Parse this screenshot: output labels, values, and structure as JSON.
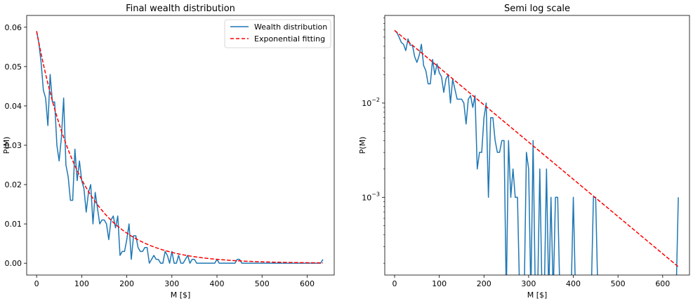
{
  "chart_data": [
    {
      "type": "line",
      "title": "Final wealth distribution",
      "xlabel": "M [$]",
      "ylabel": "P(M)",
      "xlim": [
        -22,
        660
      ],
      "ylim": [
        -0.003,
        0.063
      ],
      "yscale": "linear",
      "xticks": [
        0,
        100,
        200,
        300,
        400,
        500,
        600
      ],
      "xtick_labels": [
        "0",
        "100",
        "200",
        "300",
        "400",
        "500",
        "600"
      ],
      "yticks": [
        0.0,
        0.01,
        0.02,
        0.03,
        0.04,
        0.05,
        0.06
      ],
      "ytick_labels": [
        "0.00",
        "0.01",
        "0.02",
        "0.03",
        "0.04",
        "0.05",
        "0.06"
      ],
      "legend": {
        "position": "upper right",
        "entries": [
          "Wealth distribution",
          "Exponential fitting"
        ]
      },
      "series": [
        {
          "name": "Wealth distribution",
          "style": "solid",
          "color": "#1f77b4",
          "x": [
            0,
            5,
            10,
            15,
            20,
            25,
            30,
            35,
            40,
            45,
            50,
            55,
            60,
            65,
            70,
            75,
            80,
            85,
            90,
            95,
            100,
            105,
            110,
            115,
            120,
            125,
            130,
            135,
            140,
            145,
            150,
            155,
            160,
            165,
            170,
            175,
            180,
            185,
            190,
            195,
            200,
            205,
            210,
            215,
            220,
            225,
            230,
            235,
            240,
            245,
            250,
            255,
            260,
            265,
            270,
            275,
            280,
            285,
            290,
            295,
            300,
            305,
            310,
            315,
            320,
            325,
            330,
            335,
            340,
            345,
            350,
            355,
            360,
            365,
            370,
            375,
            380,
            385,
            390,
            395,
            400,
            405,
            410,
            415,
            420,
            425,
            430,
            435,
            440,
            445,
            450,
            455,
            460,
            465,
            470,
            475,
            480,
            485,
            490,
            495,
            500,
            505,
            510,
            515,
            520,
            525,
            530,
            535,
            540,
            545,
            550,
            555,
            560,
            565,
            570,
            575,
            580,
            585,
            590,
            595,
            600,
            605,
            610,
            615,
            620,
            625,
            630,
            635
          ],
          "values": [
            0.059,
            0.056,
            0.051,
            0.044,
            0.042,
            0.035,
            0.048,
            0.041,
            0.041,
            0.03,
            0.026,
            0.032,
            0.042,
            0.025,
            0.022,
            0.016,
            0.016,
            0.029,
            0.021,
            0.026,
            0.021,
            0.019,
            0.013,
            0.018,
            0.02,
            0.01,
            0.018,
            0.014,
            0.01,
            0.011,
            0.011,
            0.01,
            0.006,
            0.011,
            0.012,
            0.009,
            0.012,
            0.002,
            0.003,
            0.003,
            0.006,
            0.01,
            0.001,
            0.007,
            0.007,
            0.004,
            0.003,
            0.003,
            0.004,
            0.004,
            0.0,
            0.001,
            0.002,
            0.001,
            0.001,
            0.0,
            0.0,
            0.003,
            0.002,
            0.0,
            0.003,
            0.0,
            0.0,
            0.002,
            0.0,
            0.0,
            0.001,
            0.002,
            0.0,
            0.001,
            0.001,
            0.0,
            0.0,
            0.0,
            0.0,
            0.0,
            0.0,
            0.0,
            0.0,
            0.0,
            0.001,
            0.0,
            0.0,
            0.0,
            0.0,
            0.0,
            0.0,
            0.0,
            0.0,
            0.001,
            0.001,
            0.0,
            0.0,
            0.0,
            0.0,
            0.0,
            0.0,
            0.0,
            0.0,
            0.0,
            0.0,
            0.0,
            0.0,
            0.0,
            0.0,
            0.0,
            0.0,
            0.0,
            0.0,
            0.0,
            0.0,
            0.0,
            0.0,
            0.0,
            0.0,
            0.0,
            0.0,
            0.0,
            0.0,
            0.0,
            0.0,
            0.0,
            0.0,
            0.0,
            0.0,
            0.0,
            0.0,
            0.001
          ]
        },
        {
          "name": "Exponential fitting",
          "style": "dashed",
          "color": "#ff0000",
          "function": "0.059*exp(-M/98)",
          "x_range": [
            0,
            635
          ]
        }
      ]
    },
    {
      "type": "line",
      "title": "Semi log scale",
      "xlabel": "M [$]",
      "ylabel": "P(M)",
      "xlim": [
        -22,
        660
      ],
      "ylim": [
        0.00015,
        0.085
      ],
      "yscale": "log",
      "xticks": [
        0,
        100,
        200,
        300,
        400,
        500,
        600
      ],
      "xtick_labels": [
        "0",
        "100",
        "200",
        "300",
        "400",
        "500",
        "600"
      ],
      "yticks": [
        0.01,
        0.001
      ],
      "ytick_labels": [
        {
          "base": "10",
          "exp": "−2"
        },
        {
          "base": "10",
          "exp": "−3"
        }
      ],
      "series": [
        {
          "name": "Wealth distribution",
          "style": "solid",
          "color": "#1f77b4",
          "x": [
            0,
            5,
            10,
            15,
            20,
            25,
            30,
            35,
            40,
            45,
            50,
            55,
            60,
            65,
            70,
            75,
            80,
            85,
            90,
            95,
            100,
            105,
            110,
            115,
            120,
            125,
            130,
            135,
            140,
            145,
            150,
            155,
            160,
            165,
            170,
            175,
            180,
            185,
            190,
            195,
            200,
            205,
            210,
            215,
            220,
            225,
            230,
            235,
            240,
            245,
            250,
            255,
            260,
            265,
            270,
            275,
            280,
            285,
            290,
            295,
            300,
            305,
            310,
            315,
            320,
            325,
            330,
            335,
            340,
            345,
            350,
            355,
            360,
            365,
            370,
            375,
            380,
            385,
            390,
            395,
            400,
            405,
            410,
            415,
            420,
            425,
            430,
            435,
            440,
            445,
            450,
            455,
            460,
            465,
            470,
            475,
            480,
            485,
            490,
            495,
            500,
            505,
            510,
            515,
            520,
            525,
            530,
            535,
            540,
            545,
            550,
            555,
            560,
            565,
            570,
            575,
            580,
            585,
            590,
            595,
            600,
            605,
            610,
            615,
            620,
            625,
            630,
            635
          ],
          "values": [
            0.059,
            0.056,
            0.05,
            0.044,
            0.042,
            0.036,
            0.048,
            0.041,
            0.041,
            0.031,
            0.027,
            0.032,
            0.042,
            0.025,
            0.022,
            0.016,
            0.016,
            0.029,
            0.02,
            0.026,
            0.021,
            0.019,
            0.013,
            0.018,
            0.02,
            0.01,
            0.018,
            0.014,
            0.011,
            0.011,
            0.011,
            0.01,
            0.006,
            0.011,
            0.012,
            0.009,
            0.012,
            0.002,
            0.003,
            0.003,
            0.007,
            0.01,
            0.001,
            0.007,
            0.007,
            0.004,
            0.003,
            0.003,
            0.004,
            0.004,
            0.0,
            0.004,
            0.001,
            0.002,
            0.001,
            0.001,
            0.0,
            0.0,
            0.0,
            0.003,
            0.002,
            0.0,
            0.004,
            0.0,
            0.0,
            0.002,
            0.0,
            0.0,
            0.002,
            0.0,
            0.001,
            0.0,
            0.001,
            0.001,
            0.0,
            0.0,
            0.0,
            0.0,
            0.0,
            0.0,
            0.001,
            0.0,
            0.0,
            0.0,
            0.0,
            0.0,
            0.0,
            0.0,
            0.0,
            0.001,
            0.001,
            0.0,
            0.0,
            0.0,
            0.0,
            0.0,
            0.0,
            0.0,
            0.0,
            0.0,
            0.0,
            0.0,
            0.0,
            0.0,
            0.0,
            0.0,
            0.0,
            0.0,
            0.0,
            0.0,
            0.0,
            0.0,
            0.0,
            0.0,
            0.0,
            0.0,
            0.0,
            0.0,
            0.0,
            0.0,
            0.0,
            0.0,
            0.0,
            0.0,
            0.0,
            0.0,
            0.0,
            0.001
          ]
        },
        {
          "name": "Exponential fitting",
          "style": "dashed",
          "color": "#ff0000",
          "function": "0.059*exp(-M/110)",
          "x_range": [
            0,
            635
          ]
        }
      ]
    }
  ]
}
